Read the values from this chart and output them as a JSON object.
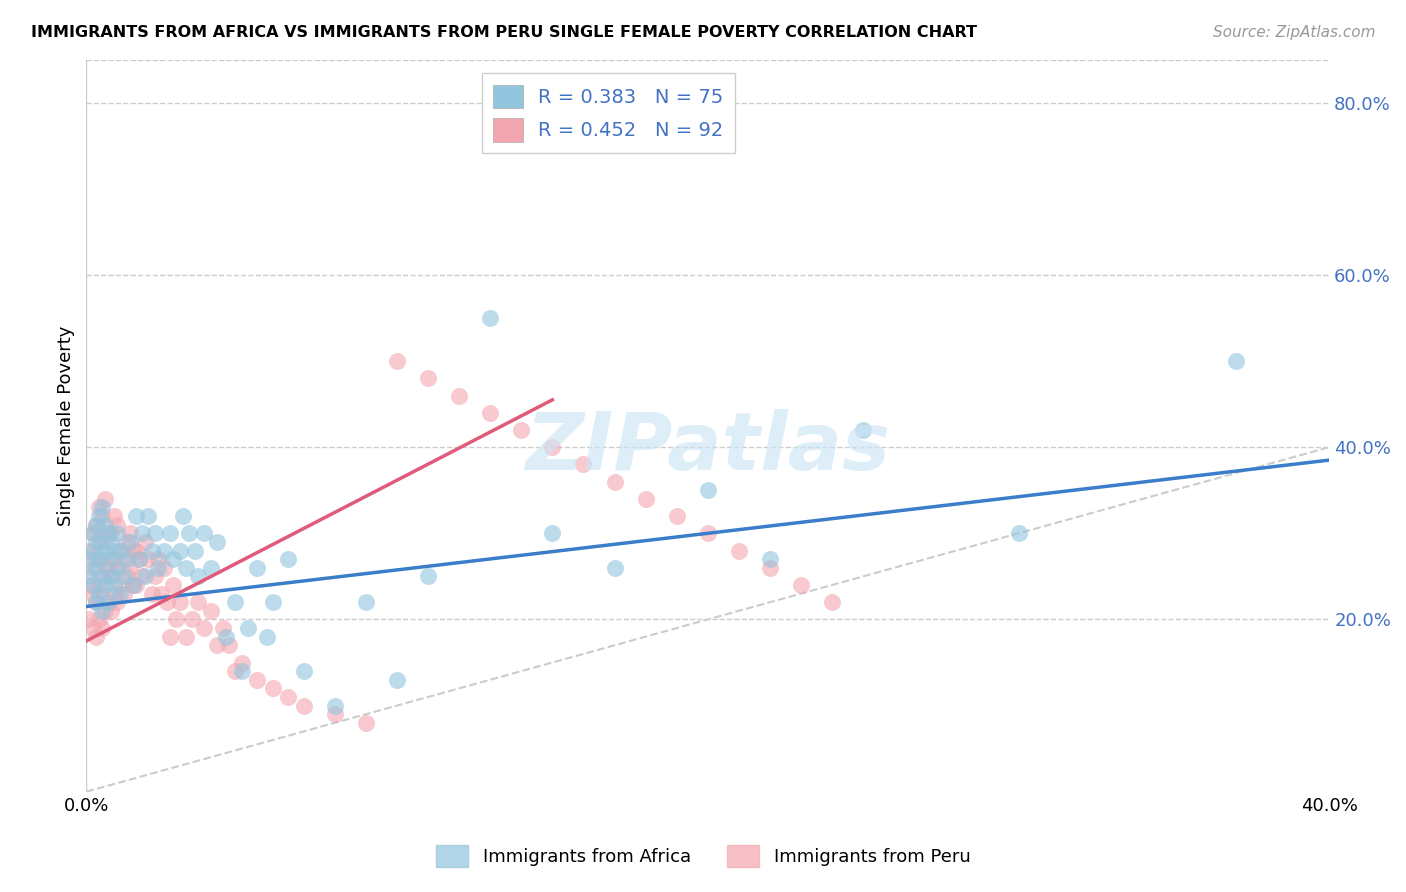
{
  "title": "IMMIGRANTS FROM AFRICA VS IMMIGRANTS FROM PERU SINGLE FEMALE POVERTY CORRELATION CHART",
  "source": "Source: ZipAtlas.com",
  "ylabel": "Single Female Poverty",
  "xlim": [
    0.0,
    0.4
  ],
  "ylim": [
    0.0,
    0.85
  ],
  "yticks_right": [
    0.2,
    0.4,
    0.6,
    0.8
  ],
  "ytick_labels_right": [
    "20.0%",
    "40.0%",
    "60.0%",
    "80.0%"
  ],
  "africa_color": "#92c5de",
  "peru_color": "#f4a6b0",
  "africa_line_color": "#3a7dc9",
  "peru_line_color": "#e05a7a",
  "diagonal_color": "#cccccc",
  "R_africa": 0.383,
  "N_africa": 75,
  "R_peru": 0.452,
  "N_peru": 92,
  "legend_label_africa": "Immigrants from Africa",
  "legend_label_peru": "Immigrants from Peru",
  "watermark": "ZIPatlas",
  "africa_line_x0": 0.0,
  "africa_line_y0": 0.215,
  "africa_line_x1": 0.4,
  "africa_line_y1": 0.385,
  "peru_line_x0": 0.0,
  "peru_line_y0": 0.175,
  "peru_line_x1": 0.15,
  "peru_line_y1": 0.455,
  "africa_points_x": [
    0.001,
    0.001,
    0.002,
    0.002,
    0.002,
    0.003,
    0.003,
    0.003,
    0.003,
    0.004,
    0.004,
    0.004,
    0.005,
    0.005,
    0.005,
    0.005,
    0.006,
    0.006,
    0.006,
    0.007,
    0.007,
    0.007,
    0.008,
    0.008,
    0.009,
    0.009,
    0.01,
    0.01,
    0.011,
    0.011,
    0.012,
    0.013,
    0.014,
    0.015,
    0.016,
    0.017,
    0.018,
    0.019,
    0.02,
    0.021,
    0.022,
    0.023,
    0.025,
    0.027,
    0.028,
    0.03,
    0.031,
    0.032,
    0.033,
    0.035,
    0.036,
    0.038,
    0.04,
    0.042,
    0.045,
    0.048,
    0.05,
    0.052,
    0.055,
    0.058,
    0.06,
    0.065,
    0.07,
    0.08,
    0.09,
    0.1,
    0.11,
    0.13,
    0.15,
    0.17,
    0.2,
    0.22,
    0.25,
    0.3,
    0.37
  ],
  "africa_points_y": [
    0.25,
    0.27,
    0.24,
    0.28,
    0.3,
    0.22,
    0.26,
    0.29,
    0.31,
    0.23,
    0.27,
    0.32,
    0.21,
    0.25,
    0.29,
    0.33,
    0.24,
    0.28,
    0.31,
    0.22,
    0.27,
    0.3,
    0.25,
    0.29,
    0.24,
    0.28,
    0.26,
    0.3,
    0.23,
    0.28,
    0.25,
    0.27,
    0.29,
    0.24,
    0.32,
    0.27,
    0.3,
    0.25,
    0.32,
    0.28,
    0.3,
    0.26,
    0.28,
    0.3,
    0.27,
    0.28,
    0.32,
    0.26,
    0.3,
    0.28,
    0.25,
    0.3,
    0.26,
    0.29,
    0.18,
    0.22,
    0.14,
    0.19,
    0.26,
    0.18,
    0.22,
    0.27,
    0.14,
    0.1,
    0.22,
    0.13,
    0.25,
    0.55,
    0.3,
    0.26,
    0.35,
    0.27,
    0.42,
    0.3,
    0.5
  ],
  "peru_points_x": [
    0.001,
    0.001,
    0.001,
    0.002,
    0.002,
    0.002,
    0.002,
    0.003,
    0.003,
    0.003,
    0.003,
    0.004,
    0.004,
    0.004,
    0.004,
    0.005,
    0.005,
    0.005,
    0.005,
    0.006,
    0.006,
    0.006,
    0.006,
    0.007,
    0.007,
    0.007,
    0.008,
    0.008,
    0.008,
    0.009,
    0.009,
    0.009,
    0.01,
    0.01,
    0.01,
    0.011,
    0.011,
    0.012,
    0.012,
    0.013,
    0.013,
    0.014,
    0.014,
    0.015,
    0.015,
    0.016,
    0.016,
    0.017,
    0.018,
    0.019,
    0.02,
    0.021,
    0.022,
    0.023,
    0.024,
    0.025,
    0.026,
    0.027,
    0.028,
    0.029,
    0.03,
    0.032,
    0.034,
    0.036,
    0.038,
    0.04,
    0.042,
    0.044,
    0.046,
    0.048,
    0.05,
    0.055,
    0.06,
    0.065,
    0.07,
    0.08,
    0.09,
    0.1,
    0.11,
    0.12,
    0.13,
    0.14,
    0.15,
    0.16,
    0.17,
    0.18,
    0.19,
    0.2,
    0.21,
    0.22,
    0.23,
    0.24
  ],
  "peru_points_y": [
    0.2,
    0.24,
    0.28,
    0.19,
    0.23,
    0.26,
    0.3,
    0.18,
    0.22,
    0.27,
    0.31,
    0.2,
    0.24,
    0.29,
    0.33,
    0.19,
    0.23,
    0.27,
    0.32,
    0.21,
    0.25,
    0.29,
    0.34,
    0.22,
    0.26,
    0.3,
    0.21,
    0.25,
    0.3,
    0.23,
    0.27,
    0.32,
    0.22,
    0.26,
    0.31,
    0.24,
    0.28,
    0.23,
    0.27,
    0.25,
    0.29,
    0.26,
    0.3,
    0.24,
    0.28,
    0.24,
    0.28,
    0.27,
    0.25,
    0.29,
    0.27,
    0.23,
    0.25,
    0.27,
    0.23,
    0.26,
    0.22,
    0.18,
    0.24,
    0.2,
    0.22,
    0.18,
    0.2,
    0.22,
    0.19,
    0.21,
    0.17,
    0.19,
    0.17,
    0.14,
    0.15,
    0.13,
    0.12,
    0.11,
    0.1,
    0.09,
    0.08,
    0.5,
    0.48,
    0.46,
    0.44,
    0.42,
    0.4,
    0.38,
    0.36,
    0.34,
    0.32,
    0.3,
    0.28,
    0.26,
    0.24,
    0.22
  ]
}
